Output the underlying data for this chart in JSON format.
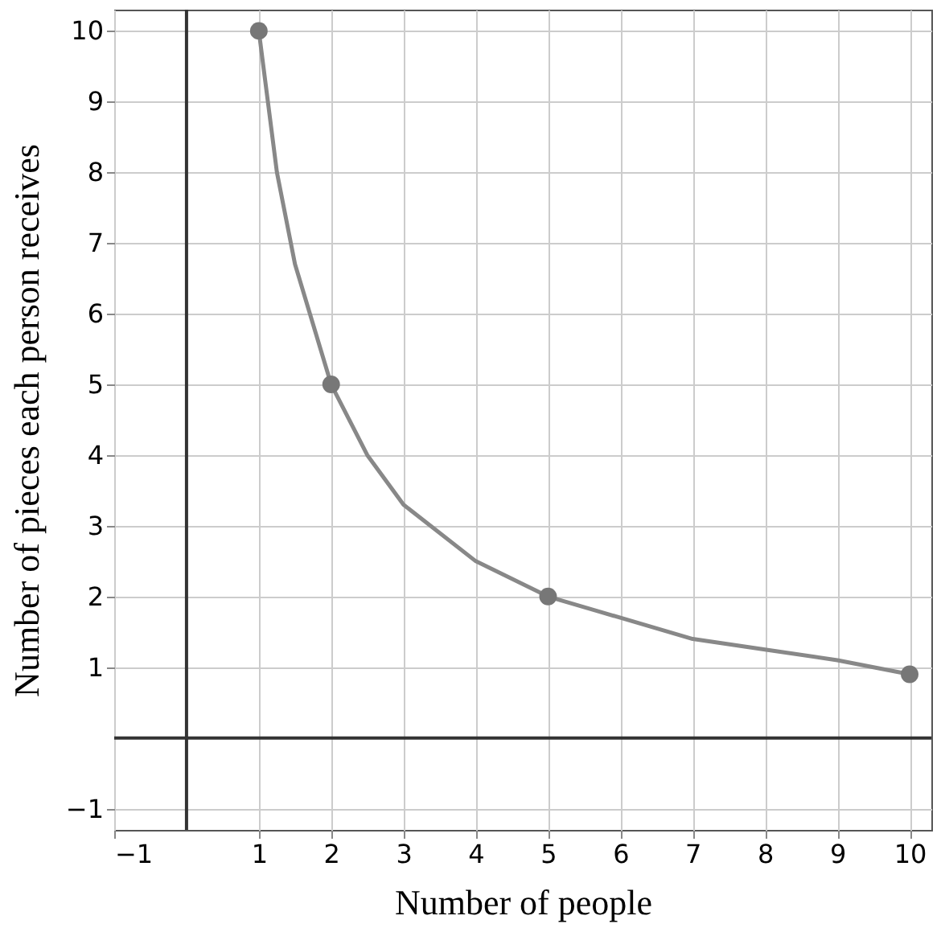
{
  "chart_data": {
    "type": "line",
    "xlabel": "Number of people",
    "ylabel": "Number of pieces each person receives",
    "xlim": [
      -1,
      10.3
    ],
    "ylim": [
      -1.3,
      10.3
    ],
    "xticks": [
      -1,
      1,
      2,
      3,
      4,
      5,
      6,
      7,
      8,
      9,
      10
    ],
    "yticks": [
      -1,
      1,
      2,
      3,
      4,
      5,
      6,
      7,
      8,
      9,
      10
    ],
    "grid": true,
    "marker": "none",
    "line_style": "solid",
    "series": [
      {
        "color": "#888888",
        "x": [
          1,
          1.25,
          1.5,
          2,
          2.5,
          3,
          4,
          5,
          6,
          7,
          8,
          9,
          10
        ],
        "values": [
          10,
          8,
          6.7,
          5,
          4,
          3.3,
          2.5,
          2,
          1.7,
          1.4,
          1.25,
          1.1,
          0.9
        ]
      },
      {
        "type": "scatter",
        "color": "#777777",
        "marker": "circle",
        "x": [
          1,
          2,
          5,
          10
        ],
        "values": [
          10,
          5,
          2,
          0.9
        ]
      }
    ]
  }
}
